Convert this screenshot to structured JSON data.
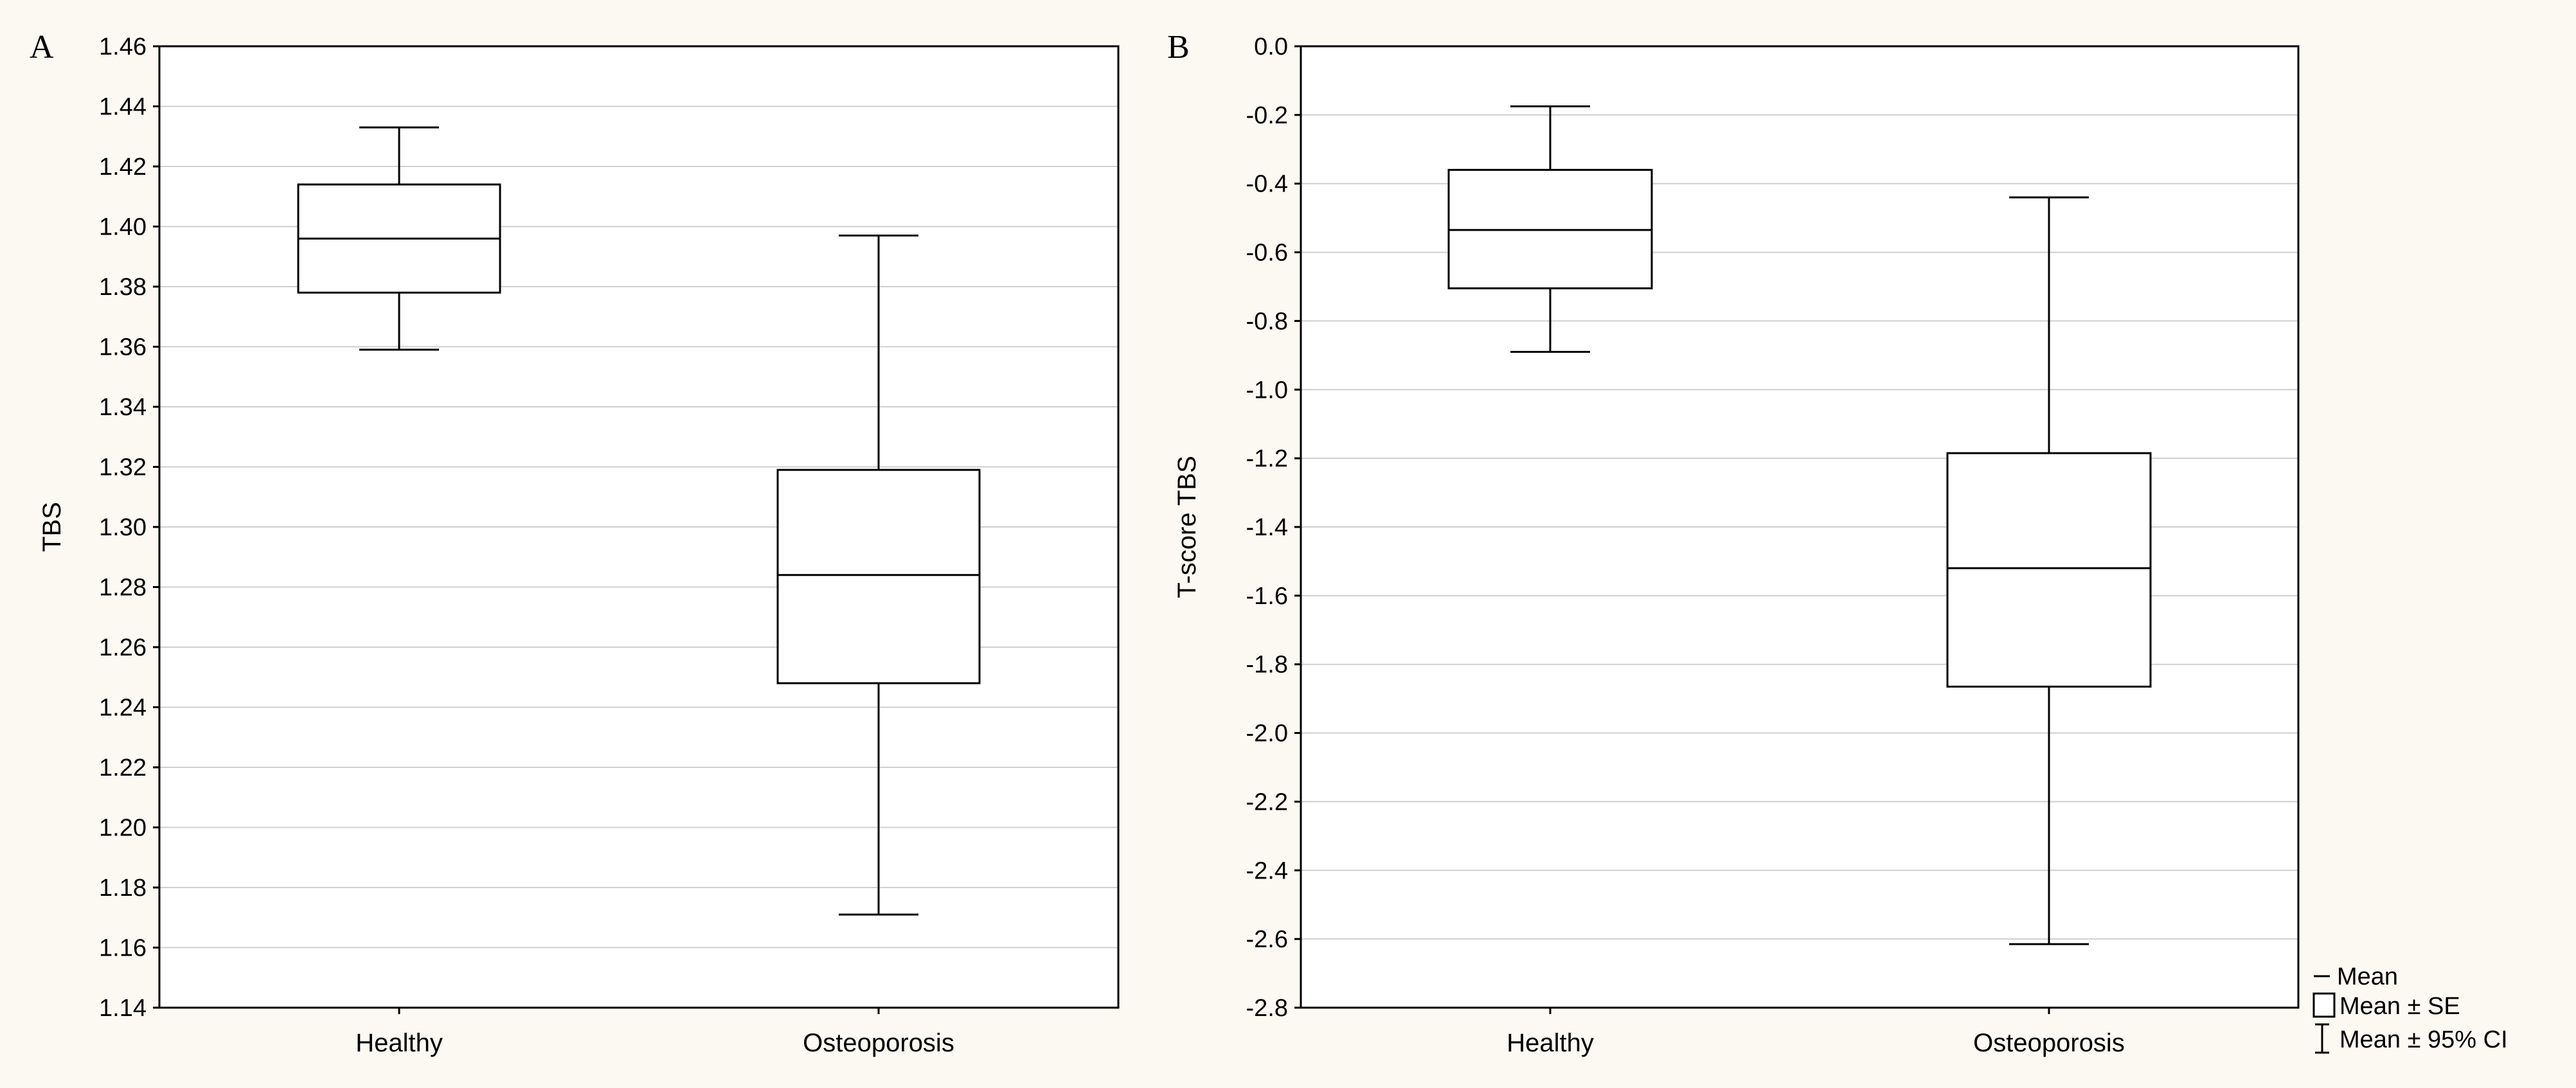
{
  "chart_data": [
    {
      "type": "box",
      "panel": "A",
      "ylabel": "TBS",
      "xlabel": "",
      "categories": [
        "Healthy",
        "Osteoporosis"
      ],
      "ylim": [
        1.14,
        1.46
      ],
      "yticks": [
        1.14,
        1.16,
        1.18,
        1.2,
        1.22,
        1.24,
        1.26,
        1.28,
        1.3,
        1.32,
        1.34,
        1.36,
        1.38,
        1.4,
        1.42,
        1.44,
        1.46
      ],
      "ytick_labels": [
        "1.14",
        "1.16",
        "1.18",
        "1.20",
        "1.22",
        "1.24",
        "1.26",
        "1.28",
        "1.30",
        "1.32",
        "1.34",
        "1.36",
        "1.38",
        "1.40",
        "1.42",
        "1.44",
        "1.46"
      ],
      "grid": true,
      "groups": [
        {
          "name": "Healthy",
          "mean": 1.396,
          "se_low": 1.378,
          "se_high": 1.414,
          "ci_low": 1.359,
          "ci_high": 1.433
        },
        {
          "name": "Osteoporosis",
          "mean": 1.284,
          "se_low": 1.248,
          "se_high": 1.319,
          "ci_low": 1.171,
          "ci_high": 1.397
        }
      ]
    },
    {
      "type": "box",
      "panel": "B",
      "ylabel": "T-score TBS",
      "xlabel": "",
      "categories": [
        "Healthy",
        "Osteoporosis"
      ],
      "ylim": [
        -2.8,
        0.0
      ],
      "yticks": [
        0.0,
        -0.2,
        -0.4,
        -0.6,
        -0.8,
        -1.0,
        -1.2,
        -1.4,
        -1.6,
        -1.8,
        -2.0,
        -2.2,
        -2.4,
        -2.6,
        -2.8
      ],
      "ytick_labels": [
        "0.0",
        "-0.2",
        "-0.4",
        "-0.6",
        "-0.8",
        "-1.0",
        "-1.2",
        "-1.4",
        "-1.6",
        "-1.8",
        "-2.0",
        "-2.2",
        "-2.4",
        "-2.6",
        "-2.8"
      ],
      "grid": true,
      "groups": [
        {
          "name": "Healthy",
          "mean": -0.535,
          "se_low": -0.705,
          "se_high": -0.36,
          "ci_low": -0.89,
          "ci_high": -0.175
        },
        {
          "name": "Osteoporosis",
          "mean": -1.52,
          "se_low": -1.865,
          "se_high": -1.185,
          "ci_low": -2.615,
          "ci_high": -0.44
        }
      ]
    }
  ],
  "legend": {
    "position": "bottom-right",
    "items": [
      {
        "symbol": "line",
        "label": "Mean"
      },
      {
        "symbol": "box",
        "label": "Mean ± SE"
      },
      {
        "symbol": "whisker",
        "label": "Mean ± 95% CI"
      }
    ]
  }
}
